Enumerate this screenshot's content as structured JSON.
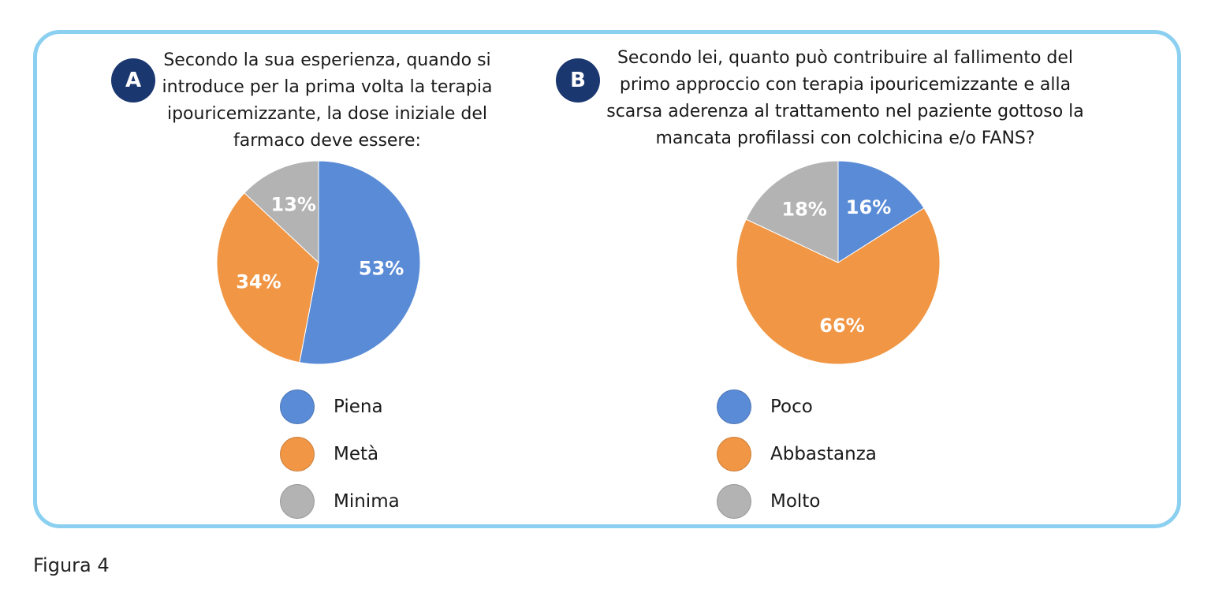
{
  "figure_caption": "Figura 4",
  "colors": {
    "blue": "#5a8bd6",
    "orange": "#f09644",
    "gray": "#b3b3b3",
    "frame": "#8bd0f0",
    "badge": "#1b3770"
  },
  "chart_data": [
    {
      "type": "pie",
      "panel_label": "A",
      "title": "Secondo la sua esperienza, quando si introduce per la prima volta la terapia ipouricemizzante, la dose iniziale del farmaco deve essere:",
      "title_lines": [
        "Secondo la sua esperienza, quando si",
        "introduce per la prima volta la terapia",
        "ipouricemizzante, la dose iniziale del",
        "farmaco deve essere:"
      ],
      "categories": [
        "Piena",
        "Metà",
        "Minima"
      ],
      "values": [
        53,
        34,
        13
      ],
      "value_labels": [
        "53%",
        "34%",
        "13%"
      ],
      "colors": [
        "#5a8bd6",
        "#f09644",
        "#b3b3b3"
      ],
      "legend_position": "bottom"
    },
    {
      "type": "pie",
      "panel_label": "B",
      "title": "Secondo lei, quanto può contribuire al fallimento del primo approccio con terapia ipouricemizzante e alla scarsa aderenza al trattamento nel paziente gottoso la mancata profilassi con colchicina e/o FANS?",
      "title_lines": [
        "Secondo lei, quanto può contribuire al fallimento del",
        "primo approccio con terapia ipouricemizzante e alla",
        "scarsa aderenza al trattamento nel paziente gottoso la",
        "mancata profilassi con colchicina e/o FANS?"
      ],
      "categories": [
        "Poco",
        "Abbastanza",
        "Molto"
      ],
      "values": [
        16,
        66,
        18
      ],
      "value_labels": [
        "16%",
        "66%",
        "18%"
      ],
      "colors": [
        "#5a8bd6",
        "#f09644",
        "#b3b3b3"
      ],
      "legend_position": "bottom"
    }
  ]
}
